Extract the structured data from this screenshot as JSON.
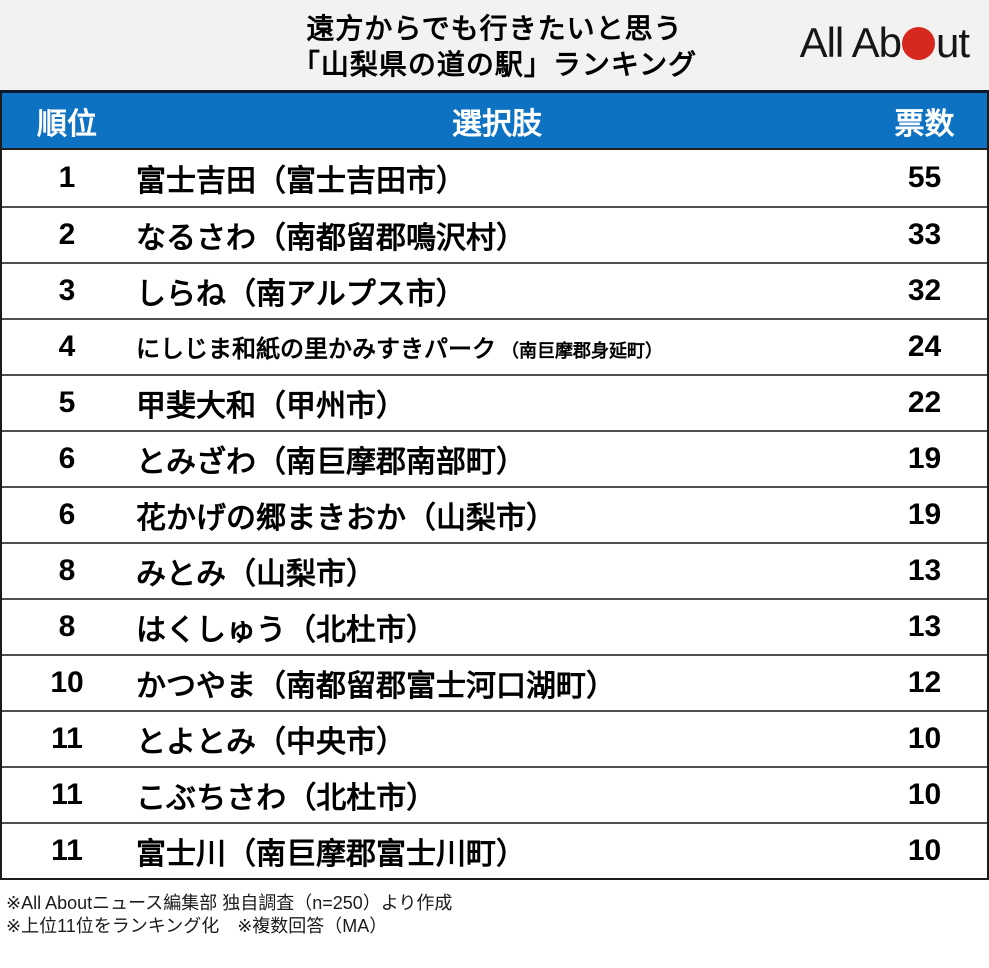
{
  "title": {
    "line1": "遠方からでも行きたいと思う",
    "line2": "「山梨県の道の駅」ランキング"
  },
  "logo": {
    "text_before": "All Ab",
    "text_after": "ut",
    "alt": "All About"
  },
  "colors": {
    "table_header_bg": "#0e72c3",
    "logo_dot_red": "#d7281e",
    "title_area_bg": "#f2f2f1"
  },
  "table": {
    "columns": {
      "rank": "順位",
      "choice": "選択肢",
      "votes": "票数"
    },
    "rows": [
      {
        "rank": "1",
        "name": "富士吉田",
        "location": "（富士吉田市）",
        "votes": "55",
        "compact": false
      },
      {
        "rank": "2",
        "name": "なるさわ",
        "location": "（南都留郡鳴沢村）",
        "votes": "33",
        "compact": false
      },
      {
        "rank": "3",
        "name": "しらね",
        "location": "（南アルプス市）",
        "votes": "32",
        "compact": false
      },
      {
        "rank": "4",
        "name": "にしじま和紙の里かみすきパーク",
        "location": "（南巨摩郡身延町）",
        "votes": "24",
        "compact": true
      },
      {
        "rank": "5",
        "name": "甲斐大和",
        "location": "（甲州市）",
        "votes": "22",
        "compact": false
      },
      {
        "rank": "6",
        "name": "とみざわ",
        "location": "（南巨摩郡南部町）",
        "votes": "19",
        "compact": false
      },
      {
        "rank": "6",
        "name": "花かげの郷まきおか",
        "location": "（山梨市）",
        "votes": "19",
        "compact": false
      },
      {
        "rank": "8",
        "name": "みとみ",
        "location": "（山梨市）",
        "votes": "13",
        "compact": false
      },
      {
        "rank": "8",
        "name": "はくしゅう",
        "location": "（北杜市）",
        "votes": "13",
        "compact": false
      },
      {
        "rank": "10",
        "name": "かつやま",
        "location": "（南都留郡富士河口湖町）",
        "votes": "12",
        "compact": false
      },
      {
        "rank": "11",
        "name": "とよとみ",
        "location": "（中央市）",
        "votes": "10",
        "compact": false
      },
      {
        "rank": "11",
        "name": "こぶちさわ",
        "location": "（北杜市）",
        "votes": "10",
        "compact": false
      },
      {
        "rank": "11",
        "name": "富士川",
        "location": "（南巨摩郡富士川町）",
        "votes": "10",
        "compact": false
      }
    ]
  },
  "footer": {
    "note1": "※All Aboutニュース編集部 独自調査（n=250）より作成",
    "note2": "※上位11位をランキング化　※複数回答（MA）"
  },
  "chart_data": {
    "type": "table",
    "title": "遠方からでも行きたいと思う「山梨県の道の駅」ランキング",
    "columns": [
      "順位",
      "選択肢",
      "票数"
    ],
    "rows": [
      [
        1,
        "富士吉田（富士吉田市）",
        55
      ],
      [
        2,
        "なるさわ（南都留郡鳴沢村）",
        33
      ],
      [
        3,
        "しらね（南アルプス市）",
        32
      ],
      [
        4,
        "にしじま和紙の里かみすきパーク（南巨摩郡身延町）",
        24
      ],
      [
        5,
        "甲斐大和（甲州市）",
        22
      ],
      [
        6,
        "とみざわ（南巨摩郡南部町）",
        19
      ],
      [
        6,
        "花かげの郷まきおか（山梨市）",
        19
      ],
      [
        8,
        "みとみ（山梨市）",
        13
      ],
      [
        8,
        "はくしゅう（北杜市）",
        13
      ],
      [
        10,
        "かつやま（南都留郡富士河口湖町）",
        12
      ],
      [
        11,
        "とよとみ（中央市）",
        10
      ],
      [
        11,
        "こぶちさわ（北杜市）",
        10
      ],
      [
        11,
        "富士川（南巨摩郡富士川町）",
        10
      ]
    ],
    "notes": [
      "※All Aboutニュース編集部 独自調査（n=250）より作成",
      "※上位11位をランキング化　※複数回答（MA）"
    ]
  }
}
